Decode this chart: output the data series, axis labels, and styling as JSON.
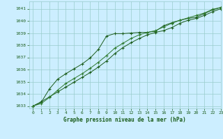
{
  "title": "Graphe pression niveau de la mer (hPa)",
  "bg_color": "#cceeff",
  "grid_color": "#99cccc",
  "line_color_dark": "#1a5c1a",
  "line_color_mid": "#2d7a2d",
  "xlim": [
    -0.5,
    23
  ],
  "ylim": [
    1032.8,
    1041.6
  ],
  "yticks": [
    1033,
    1034,
    1035,
    1036,
    1037,
    1038,
    1039,
    1040,
    1041
  ],
  "xticks": [
    0,
    1,
    2,
    3,
    4,
    5,
    6,
    7,
    8,
    9,
    10,
    11,
    12,
    13,
    14,
    15,
    16,
    17,
    18,
    19,
    20,
    21,
    22,
    23
  ],
  "series1_x": [
    0,
    1,
    2,
    3,
    4,
    5,
    6,
    7,
    8,
    9,
    10,
    11,
    12,
    13,
    14,
    15,
    16,
    17,
    18,
    19,
    20,
    21,
    22,
    23
  ],
  "series1_y": [
    1033.0,
    1033.35,
    1033.75,
    1034.15,
    1034.55,
    1034.95,
    1035.35,
    1035.75,
    1036.2,
    1036.7,
    1037.3,
    1037.8,
    1038.2,
    1038.55,
    1038.85,
    1039.05,
    1039.2,
    1039.45,
    1039.8,
    1040.05,
    1040.2,
    1040.45,
    1040.75,
    1041.0
  ],
  "series2_x": [
    0,
    1,
    2,
    3,
    4,
    5,
    6,
    7,
    8,
    9,
    10,
    11,
    12,
    13,
    14,
    15,
    16,
    17,
    18,
    19,
    20,
    21,
    22,
    23
  ],
  "series2_y": [
    1033.0,
    1033.3,
    1034.4,
    1035.2,
    1035.65,
    1036.05,
    1036.45,
    1036.95,
    1037.65,
    1038.75,
    1038.95,
    1038.95,
    1039.0,
    1039.05,
    1039.05,
    1039.15,
    1039.6,
    1039.85,
    1040.05,
    1040.2,
    1040.3,
    1040.6,
    1040.9,
    1041.1
  ],
  "series3_x": [
    0,
    1,
    2,
    3,
    4,
    5,
    6,
    7,
    8,
    9,
    10,
    11,
    12,
    13,
    14,
    15,
    16,
    17,
    18,
    19,
    20,
    21,
    22,
    23
  ],
  "series3_y": [
    1033.0,
    1033.2,
    1033.7,
    1034.3,
    1034.85,
    1035.25,
    1035.65,
    1036.1,
    1036.6,
    1037.15,
    1037.75,
    1038.15,
    1038.55,
    1038.85,
    1039.05,
    1039.2,
    1039.5,
    1039.8,
    1040.05,
    1040.25,
    1040.45,
    1040.65,
    1040.95,
    1041.1
  ],
  "ylabel_fontsize": 5.0,
  "xlabel_fontsize": 5.5,
  "tick_fontsize": 4.5
}
